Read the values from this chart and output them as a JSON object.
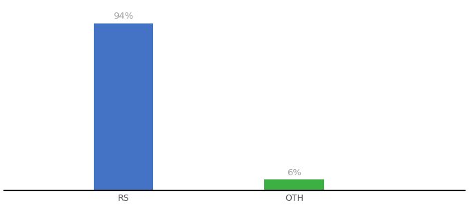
{
  "categories": [
    "RS",
    "OTH"
  ],
  "values": [
    94,
    6
  ],
  "bar_colors": [
    "#4472c4",
    "#3cb043"
  ],
  "value_labels": [
    "94%",
    "6%"
  ],
  "background_color": "#ffffff",
  "ylim": [
    0,
    105
  ],
  "bar_width": 0.35,
  "label_fontsize": 9.5,
  "tick_fontsize": 9,
  "label_color": "#a0a0a0",
  "axis_line_color": "#111111",
  "x_positions": [
    1,
    2
  ],
  "xlim": [
    0.3,
    3.0
  ]
}
